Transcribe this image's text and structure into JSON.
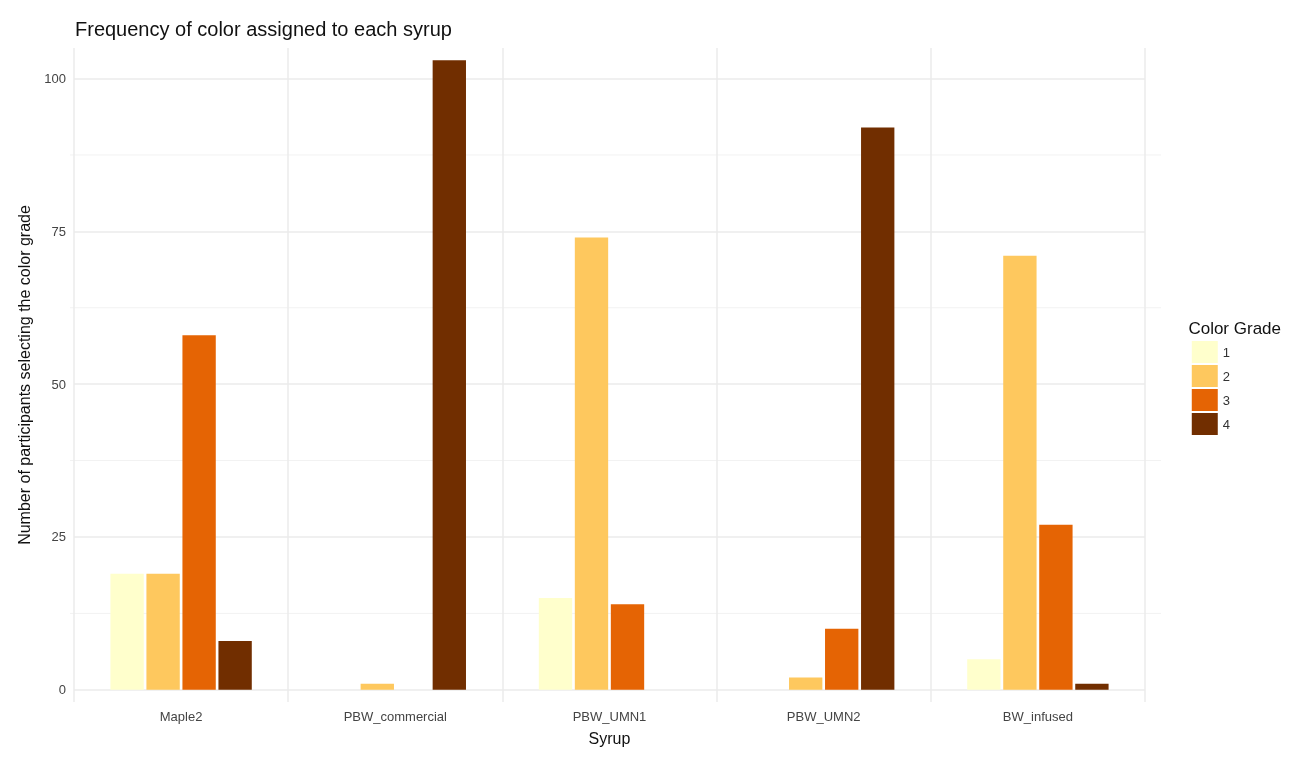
{
  "chart_data": {
    "type": "bar",
    "title": "Frequency of color assigned to each syrup",
    "xlabel": "Syrup",
    "ylabel": "Number of participants selecting the color grade",
    "legend_title": "Color Grade",
    "categories": [
      "Maple2",
      "PBW_commercial",
      "PBW_UMN1",
      "PBW_UMN2",
      "BW_infused"
    ],
    "series": [
      {
        "name": "1",
        "color": "#ffffcc",
        "values": [
          19,
          0,
          15,
          0,
          5
        ]
      },
      {
        "name": "2",
        "color": "#fec85e",
        "values": [
          19,
          1,
          74,
          2,
          71
        ]
      },
      {
        "name": "3",
        "color": "#e56404",
        "values": [
          58,
          0,
          14,
          10,
          27
        ]
      },
      {
        "name": "4",
        "color": "#712e00",
        "values": [
          8,
          103,
          0,
          92,
          1
        ]
      }
    ],
    "ylim": [
      -2,
      105
    ],
    "yticks": [
      0,
      25,
      50,
      75,
      100
    ],
    "grid": true,
    "legend": "right"
  }
}
